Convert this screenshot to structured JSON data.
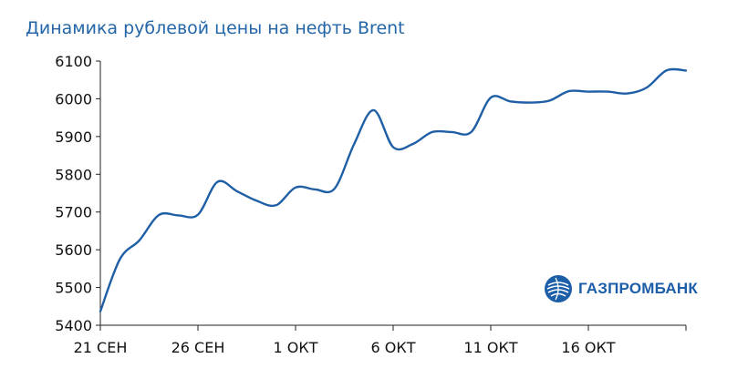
{
  "chart_data": {
    "type": "line",
    "title": "Динамика рублевой цены на нефть Brent",
    "xlabel": "",
    "ylabel": "",
    "ylim": [
      5400,
      6100
    ],
    "yticks": [
      5400,
      5500,
      5600,
      5700,
      5800,
      5900,
      6000,
      6100
    ],
    "xlim": [
      0,
      30
    ],
    "xticks": [
      {
        "x": 0,
        "label": "21 СЕН"
      },
      {
        "x": 5,
        "label": "26 СЕН"
      },
      {
        "x": 10,
        "label": "1 ОКТ"
      },
      {
        "x": 15,
        "label": "6 ОКТ"
      },
      {
        "x": 20,
        "label": "11 ОКТ"
      },
      {
        "x": 25,
        "label": "16 ОКТ"
      }
    ],
    "grid": false,
    "line_color": "#1f5fa6",
    "series": [
      {
        "x": [
          0,
          1,
          2,
          3,
          4,
          5,
          6,
          7,
          8,
          9,
          10,
          11,
          12,
          13,
          14,
          15,
          16,
          17,
          18,
          19,
          20,
          21,
          22,
          23,
          24,
          25,
          26,
          27,
          28,
          29,
          30
        ],
        "values": [
          5437,
          5575,
          5625,
          5692,
          5691,
          5693,
          5780,
          5755,
          5730,
          5718,
          5765,
          5760,
          5762,
          5880,
          5970,
          5872,
          5880,
          5912,
          5912,
          5912,
          6003,
          5993,
          5990,
          5995,
          6020,
          6019,
          6019,
          6014,
          6030,
          6075,
          6075
        ]
      }
    ]
  },
  "logo": {
    "text": "ГАЗПРОМБАНК",
    "color": "#1c5ea8"
  }
}
